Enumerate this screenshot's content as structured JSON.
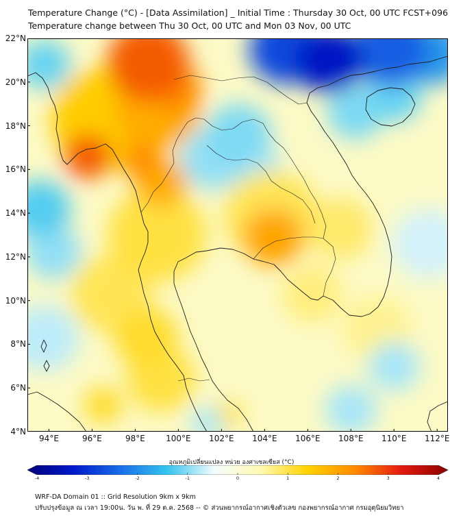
{
  "titles": {
    "line1": "Temperature Change (°C) - [Data Assimilation] _ Initial Time : Thursday 30 Oct, 00 UTC FCST+096",
    "line2": "Temperature change between Thu 30 Oct, 00 UTC and Mon 03 Nov, 00 UTC"
  },
  "map": {
    "lon_range": [
      93,
      112.5
    ],
    "lat_range": [
      4,
      22
    ],
    "lat_ticks": [
      {
        "value": 22,
        "label": "22°N"
      },
      {
        "value": 20,
        "label": "20°N"
      },
      {
        "value": 18,
        "label": "18°N"
      },
      {
        "value": 16,
        "label": "16°N"
      },
      {
        "value": 14,
        "label": "14°N"
      },
      {
        "value": 12,
        "label": "12°N"
      },
      {
        "value": 10,
        "label": "10°N"
      },
      {
        "value": 8,
        "label": "8°N"
      },
      {
        "value": 6,
        "label": "6°N"
      },
      {
        "value": 4,
        "label": "4°N"
      }
    ],
    "lon_ticks": [
      {
        "value": 94,
        "label": "94°E"
      },
      {
        "value": 96,
        "label": "96°E"
      },
      {
        "value": 98,
        "label": "98°E"
      },
      {
        "value": 100,
        "label": "100°E"
      },
      {
        "value": 102,
        "label": "102°E"
      },
      {
        "value": 104,
        "label": "104°E"
      },
      {
        "value": 106,
        "label": "106°E"
      },
      {
        "value": 108,
        "label": "108°E"
      },
      {
        "value": 110,
        "label": "110°E"
      },
      {
        "value": 112,
        "label": "112°E"
      }
    ],
    "field_background_change": 0.2,
    "field_features": [
      {
        "lon": 98.6,
        "lat": 20.9,
        "radius_deg": 1.9,
        "change": 2.6
      },
      {
        "lon": 99.9,
        "lat": 19.7,
        "radius_deg": 1.2,
        "change": 2.2
      },
      {
        "lon": 99.0,
        "lat": 18.8,
        "radius_deg": 2.0,
        "change": 1.8
      },
      {
        "lon": 95.8,
        "lat": 16.6,
        "radius_deg": 1.1,
        "change": 2.6
      },
      {
        "lon": 96.6,
        "lat": 18.3,
        "radius_deg": 2.5,
        "change": 1.4
      },
      {
        "lon": 98.3,
        "lat": 16.4,
        "radius_deg": 0.9,
        "change": 2.2
      },
      {
        "lon": 99.2,
        "lat": 15.4,
        "radius_deg": 1.2,
        "change": 1.8
      },
      {
        "lon": 99.0,
        "lat": 13.0,
        "radius_deg": 2.3,
        "change": 1.0
      },
      {
        "lon": 96.9,
        "lat": 10.3,
        "radius_deg": 1.9,
        "change": 0.9
      },
      {
        "lon": 98.5,
        "lat": 8.3,
        "radius_deg": 1.5,
        "change": 1.1
      },
      {
        "lon": 99.2,
        "lat": 6.4,
        "radius_deg": 1.6,
        "change": 1.0
      },
      {
        "lon": 96.5,
        "lat": 5.2,
        "radius_deg": 0.9,
        "change": 1.1
      },
      {
        "lon": 102.4,
        "lat": 4.8,
        "radius_deg": 0.6,
        "change": 1.0
      },
      {
        "lon": 104.4,
        "lat": 12.9,
        "radius_deg": 1.4,
        "change": 1.9
      },
      {
        "lon": 104.3,
        "lat": 13.9,
        "radius_deg": 2.2,
        "change": 0.9
      },
      {
        "lon": 107.5,
        "lat": 13.3,
        "radius_deg": 1.5,
        "change": 0.8
      },
      {
        "lon": 106.2,
        "lat": 10.3,
        "radius_deg": 1.4,
        "change": 0.7
      },
      {
        "lon": 109.2,
        "lat": 8.7,
        "radius_deg": 1.6,
        "change": 0.6
      },
      {
        "lon": 107.0,
        "lat": 21.0,
        "radius_deg": 1.6,
        "change": -3.2
      },
      {
        "lon": 105.0,
        "lat": 21.5,
        "radius_deg": 1.7,
        "change": -2.6
      },
      {
        "lon": 109.8,
        "lat": 21.5,
        "radius_deg": 1.8,
        "change": -2.4
      },
      {
        "lon": 111.8,
        "lat": 21.3,
        "radius_deg": 1.5,
        "change": -1.8
      },
      {
        "lon": 108.2,
        "lat": 18.6,
        "radius_deg": 1.3,
        "change": -1.0
      },
      {
        "lon": 110.0,
        "lat": 19.4,
        "radius_deg": 1.3,
        "change": -1.1
      },
      {
        "lon": 102.8,
        "lat": 17.6,
        "radius_deg": 1.5,
        "change": -1.0
      },
      {
        "lon": 101.6,
        "lat": 16.5,
        "radius_deg": 1.5,
        "change": -0.9
      },
      {
        "lon": 103.5,
        "lat": 16.0,
        "radius_deg": 1.3,
        "change": -0.8
      },
      {
        "lon": 93.8,
        "lat": 20.8,
        "radius_deg": 1.2,
        "change": -1.1
      },
      {
        "lon": 93.6,
        "lat": 14.2,
        "radius_deg": 1.4,
        "change": -1.2
      },
      {
        "lon": 94.2,
        "lat": 12.2,
        "radius_deg": 1.3,
        "change": -0.9
      },
      {
        "lon": 93.8,
        "lat": 8.3,
        "radius_deg": 1.6,
        "change": -0.7
      },
      {
        "lon": 110.0,
        "lat": 7.0,
        "radius_deg": 1.2,
        "change": -0.8
      },
      {
        "lon": 108.0,
        "lat": 5.0,
        "radius_deg": 1.2,
        "change": -0.8
      },
      {
        "lon": 111.6,
        "lat": 12.6,
        "radius_deg": 1.7,
        "change": -0.6
      },
      {
        "lon": 101.4,
        "lat": 4.4,
        "radius_deg": 0.8,
        "change": -0.8
      }
    ]
  },
  "colorbar": {
    "title": "อุณหภูมิเปลี่ยนแปลง หน่วย องศาเซลเซียส (°C)",
    "min": -4,
    "max": 4,
    "ticks": [
      {
        "value": -4,
        "label": "-4"
      },
      {
        "value": -3,
        "label": "-3"
      },
      {
        "value": -2,
        "label": "-2"
      },
      {
        "value": -1,
        "label": "-1"
      },
      {
        "value": 0,
        "label": "0"
      },
      {
        "value": 1,
        "label": "1"
      },
      {
        "value": 2,
        "label": "2"
      },
      {
        "value": 3,
        "label": "3"
      },
      {
        "value": 4,
        "label": "4"
      }
    ],
    "colors": [
      "#00007a",
      "#0019cc",
      "#1a6fe8",
      "#35c4ee",
      "#f5fcff",
      "#fff9b0",
      "#ffd200",
      "#ff8a00",
      "#e41a0f",
      "#8c0000"
    ]
  },
  "footer": {
    "line1": "WRF-DA Domain 01 :: Grid Resolution 9km x 9km",
    "line2": "ปรับปรุงข้อมูล ณ เวลา 19:00น. วัน พ. ที่ 29 ต.ค. 2568 -- © ส่วนพยากรณ์อากาศเชิงตัวเลข กองพยากรณ์อากาศ กรมอุตุนิยมวิทยา"
  }
}
